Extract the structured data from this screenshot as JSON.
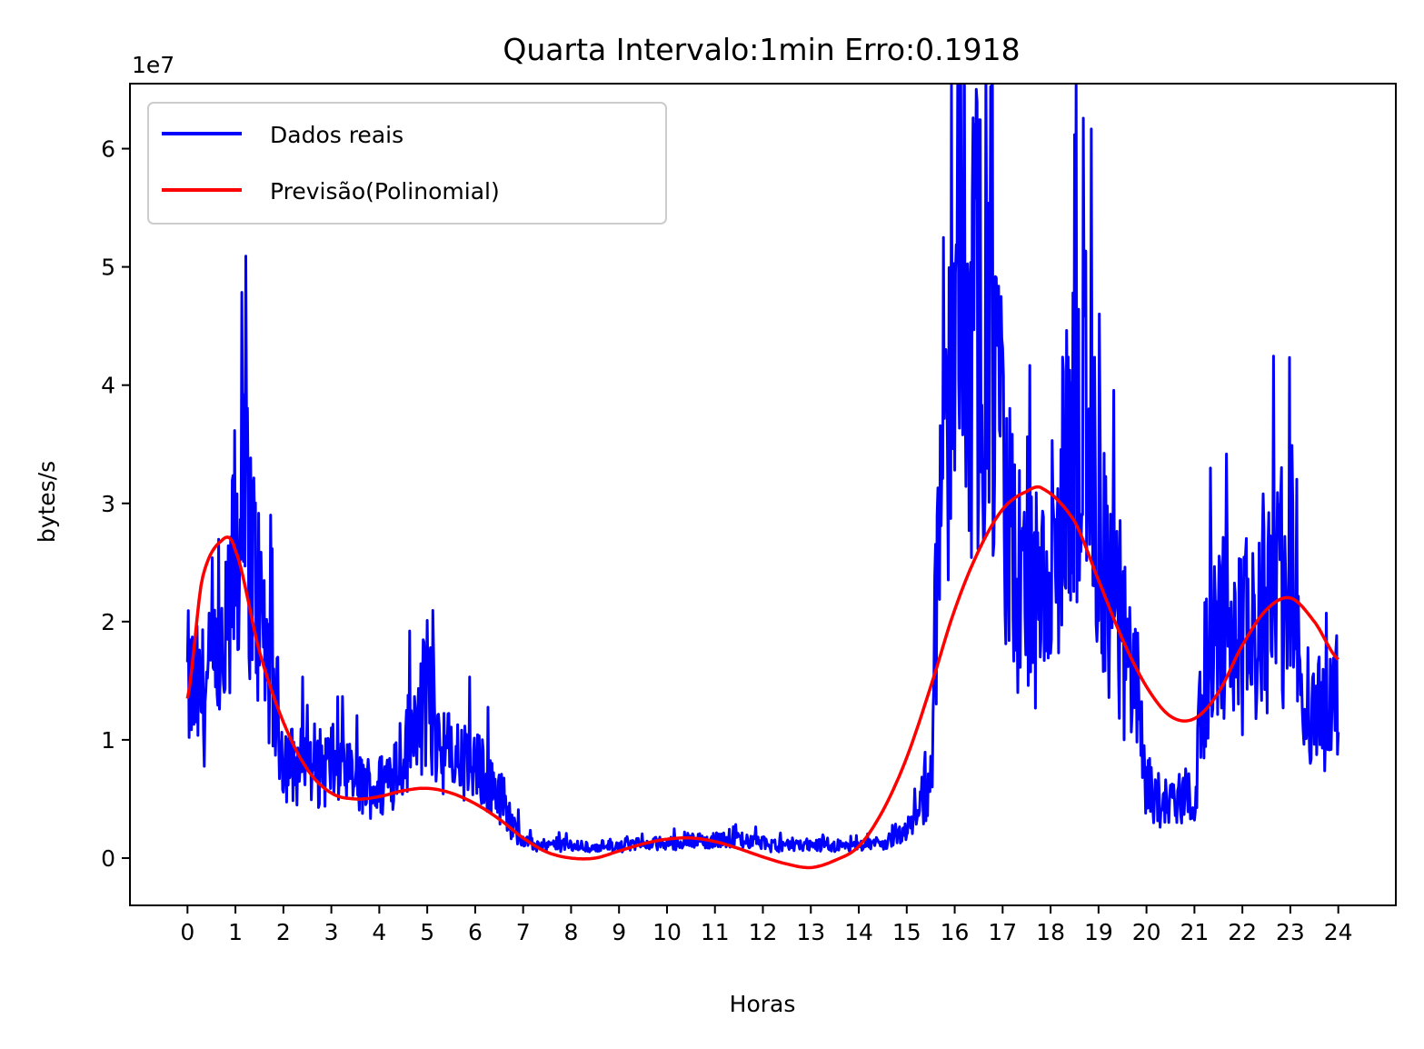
{
  "chart_data": {
    "type": "line",
    "title": "Quarta Intervalo:1min Erro:0.1918",
    "xlabel": "Horas",
    "ylabel": "bytes/s",
    "y_offset_label": "1e7",
    "xlim": [
      -1.2,
      25.2
    ],
    "ylim": [
      -0.4,
      6.55
    ],
    "x_ticks": [
      0,
      1,
      2,
      3,
      4,
      5,
      6,
      7,
      8,
      9,
      10,
      11,
      12,
      13,
      14,
      15,
      16,
      17,
      18,
      19,
      20,
      21,
      22,
      23,
      24
    ],
    "x_tick_labels": [
      "0",
      "1",
      "2",
      "3",
      "4",
      "5",
      "6",
      "7",
      "8",
      "9",
      "10",
      "11",
      "12",
      "13",
      "14",
      "15",
      "16",
      "17",
      "18",
      "19",
      "20",
      "21",
      "22",
      "23",
      "24"
    ],
    "y_ticks": [
      0,
      1,
      2,
      3,
      4,
      5,
      6
    ],
    "y_tick_labels": [
      "0",
      "1",
      "2",
      "3",
      "4",
      "5",
      "6"
    ],
    "grid": false,
    "legend_placement": "upper-left",
    "series": [
      {
        "name": "Dados reais",
        "color": "#0000ff",
        "style": "noisy",
        "x": [
          0,
          0.25,
          0.5,
          0.75,
          1,
          1.25,
          1.5,
          1.75,
          2,
          2.25,
          2.5,
          2.75,
          3,
          3.25,
          3.5,
          3.75,
          4,
          4.25,
          4.5,
          4.75,
          5,
          5.25,
          5.5,
          5.75,
          6,
          6.25,
          6.5,
          6.75,
          7,
          7.25,
          7.5,
          7.75,
          8,
          8.5,
          9,
          9.5,
          10,
          10.5,
          11,
          11.5,
          12,
          12.5,
          13,
          13.5,
          14,
          14.5,
          15,
          15.25,
          15.5,
          15.75,
          16,
          16.25,
          16.5,
          16.75,
          17,
          17.25,
          17.5,
          17.75,
          18,
          18.25,
          18.5,
          18.75,
          19,
          19.25,
          19.5,
          19.75,
          20,
          20.25,
          20.5,
          20.75,
          21,
          21.25,
          21.5,
          21.75,
          22,
          22.25,
          22.5,
          22.75,
          23,
          23.25,
          23.5,
          23.75,
          24
        ],
        "y": [
          1.45,
          1.35,
          1.5,
          1.55,
          2.6,
          2.8,
          2.1,
          1.5,
          0.9,
          0.75,
          0.8,
          0.75,
          0.8,
          0.7,
          0.65,
          0.6,
          0.6,
          0.75,
          0.9,
          1.1,
          1.35,
          1.0,
          0.85,
          0.8,
          0.75,
          0.7,
          0.55,
          0.3,
          0.15,
          0.1,
          0.1,
          0.12,
          0.1,
          0.08,
          0.1,
          0.12,
          0.12,
          0.15,
          0.15,
          0.15,
          0.12,
          0.1,
          0.1,
          0.1,
          0.1,
          0.12,
          0.2,
          0.4,
          0.7,
          3.6,
          4.0,
          4.3,
          4.6,
          4.3,
          3.2,
          2.4,
          2.2,
          2.0,
          2.1,
          3.0,
          3.5,
          3.6,
          2.6,
          2.2,
          1.8,
          1.4,
          0.6,
          0.45,
          0.5,
          0.5,
          0.55,
          1.7,
          2.0,
          1.9,
          1.85,
          1.9,
          2.2,
          2.3,
          2.3,
          1.5,
          1.2,
          1.2,
          1.4
        ]
      },
      {
        "name": "Previsão(Polinomial)",
        "color": "#ff0000",
        "style": "smooth",
        "x": [
          0,
          0.3,
          0.7,
          1,
          1.5,
          2,
          2.5,
          3,
          3.5,
          4,
          4.5,
          5,
          5.5,
          6,
          6.5,
          7,
          7.5,
          8,
          8.5,
          9,
          9.5,
          10,
          10.5,
          11,
          11.5,
          12,
          12.5,
          13,
          13.5,
          14,
          14.5,
          15,
          15.5,
          16,
          16.5,
          17,
          17.5,
          17.85,
          18.5,
          19,
          19.5,
          20,
          20.5,
          21,
          21.5,
          22,
          22.5,
          23,
          23.5,
          24
        ],
        "y": [
          1.35,
          2.35,
          2.68,
          2.6,
          1.75,
          1.15,
          0.75,
          0.55,
          0.5,
          0.52,
          0.57,
          0.59,
          0.55,
          0.46,
          0.33,
          0.17,
          0.05,
          0.0,
          0.0,
          0.06,
          0.12,
          0.16,
          0.17,
          0.14,
          0.08,
          0.01,
          -0.05,
          -0.08,
          -0.02,
          0.1,
          0.4,
          0.85,
          1.45,
          2.1,
          2.6,
          2.95,
          3.1,
          3.12,
          2.85,
          2.35,
          1.85,
          1.45,
          1.2,
          1.18,
          1.4,
          1.8,
          2.1,
          2.2,
          2.0,
          1.68
        ]
      }
    ]
  }
}
